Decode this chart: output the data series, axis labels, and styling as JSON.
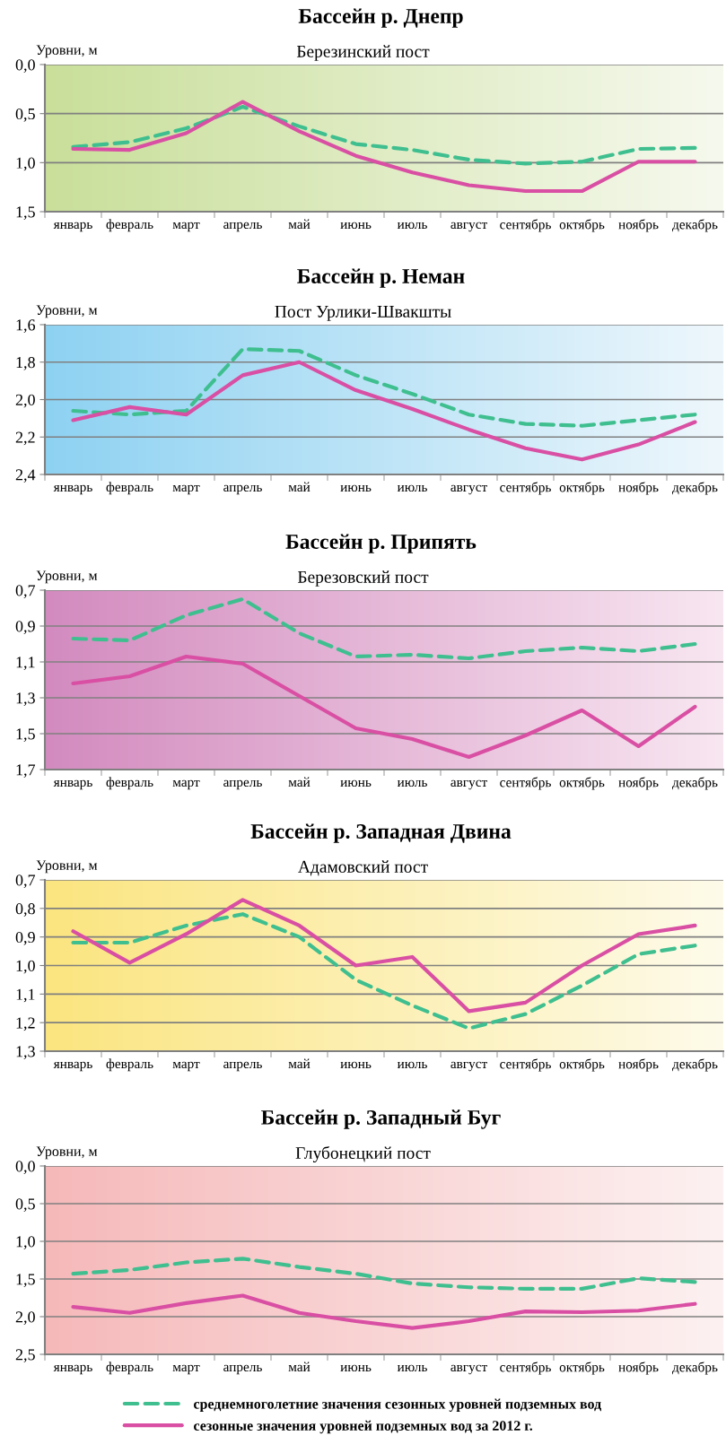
{
  "chart_data": [
    {
      "type": "line",
      "title": "Бассейн р. Днепр",
      "subtitle": "Березинский пост",
      "ylabel": "Уровни, м",
      "categories": [
        "январь",
        "февраль",
        "март",
        "апрель",
        "май",
        "июнь",
        "июль",
        "август",
        "сентябрь",
        "октябрь",
        "ноябрь",
        "декабрь"
      ],
      "series": [
        {
          "color": "#3fbf8f",
          "line_style": "dashed",
          "values": [
            0.84,
            0.79,
            0.65,
            0.43,
            0.63,
            0.81,
            0.87,
            0.97,
            1.01,
            0.99,
            0.86,
            0.85
          ]
        },
        {
          "color": "#d94fa3",
          "line_style": "solid",
          "values": [
            0.86,
            0.87,
            0.7,
            0.38,
            0.68,
            0.93,
            1.1,
            1.23,
            1.29,
            1.29,
            0.99,
            0.99
          ]
        }
      ],
      "ylim": [
        1.5,
        0.0
      ],
      "yticks": [
        {
          "value": 0.0,
          "label": "0,0"
        },
        {
          "value": 0.5,
          "label": "0,5"
        },
        {
          "value": 1.0,
          "label": "1,0"
        },
        {
          "value": 1.5,
          "label": "1,5"
        }
      ],
      "grid": "y",
      "marker": "none"
    },
    {
      "type": "line",
      "title": "Бассейн р. Неман",
      "subtitle": "Пост Урлики-Швакшты",
      "ylabel": "Уровни, м",
      "categories": [
        "январь",
        "февраль",
        "март",
        "апрель",
        "май",
        "июнь",
        "июль",
        "август",
        "сентябрь",
        "октябрь",
        "ноябрь",
        "декабрь"
      ],
      "series": [
        {
          "color": "#3fbf8f",
          "line_style": "dashed",
          "values": [
            2.06,
            2.08,
            2.06,
            1.73,
            1.74,
            1.87,
            1.97,
            2.08,
            2.13,
            2.14,
            2.11,
            2.08
          ]
        },
        {
          "color": "#d94fa3",
          "line_style": "solid",
          "values": [
            2.11,
            2.04,
            2.08,
            1.87,
            1.8,
            1.95,
            2.05,
            2.16,
            2.26,
            2.32,
            2.24,
            2.12
          ]
        }
      ],
      "ylim": [
        2.4,
        1.6
      ],
      "yticks": [
        {
          "value": 1.6,
          "label": "1,6"
        },
        {
          "value": 1.8,
          "label": "1,8"
        },
        {
          "value": 2.0,
          "label": "2,0"
        },
        {
          "value": 2.2,
          "label": "2,2"
        },
        {
          "value": 2.4,
          "label": "2,4"
        }
      ],
      "grid": "y",
      "marker": "none"
    },
    {
      "type": "line",
      "title": "Бассейн р. Припять",
      "subtitle": "Березовский пост",
      "ylabel": "Уровни, м",
      "categories": [
        "январь",
        "февраль",
        "март",
        "апрель",
        "май",
        "июнь",
        "июль",
        "август",
        "сентябрь",
        "октябрь",
        "ноябрь",
        "декабрь"
      ],
      "series": [
        {
          "color": "#3fbf8f",
          "line_style": "dashed",
          "values": [
            0.97,
            0.98,
            0.84,
            0.75,
            0.94,
            1.07,
            1.06,
            1.08,
            1.04,
            1.02,
            1.04,
            1.0
          ]
        },
        {
          "color": "#d94fa3",
          "line_style": "solid",
          "values": [
            1.22,
            1.18,
            1.07,
            1.11,
            1.29,
            1.47,
            1.53,
            1.63,
            1.51,
            1.37,
            1.57,
            1.35
          ]
        }
      ],
      "ylim": [
        1.7,
        0.7
      ],
      "yticks": [
        {
          "value": 0.7,
          "label": "0,7"
        },
        {
          "value": 0.9,
          "label": "0,9"
        },
        {
          "value": 1.1,
          "label": "1,1"
        },
        {
          "value": 1.3,
          "label": "1,3"
        },
        {
          "value": 1.5,
          "label": "1,5"
        },
        {
          "value": 1.7,
          "label": "1,7"
        }
      ],
      "grid": "y",
      "marker": "none"
    },
    {
      "type": "line",
      "title": "Бассейн р. Западная Двина",
      "subtitle": "Адамовский пост",
      "ylabel": "Уровни, м",
      "categories": [
        "январь",
        "февраль",
        "март",
        "апрель",
        "май",
        "июнь",
        "июль",
        "август",
        "сентябрь",
        "октябрь",
        "ноябрь",
        "декабрь"
      ],
      "series": [
        {
          "color": "#3fbf8f",
          "line_style": "dashed",
          "values": [
            0.92,
            0.92,
            0.86,
            0.82,
            0.9,
            1.05,
            1.14,
            1.22,
            1.17,
            1.07,
            0.96,
            0.93
          ]
        },
        {
          "color": "#d94fa3",
          "line_style": "solid",
          "values": [
            0.88,
            0.99,
            0.89,
            0.77,
            0.86,
            1.0,
            0.97,
            1.16,
            1.13,
            1.0,
            0.89,
            0.86
          ]
        }
      ],
      "ylim": [
        1.3,
        0.7
      ],
      "yticks": [
        {
          "value": 0.7,
          "label": "0,7"
        },
        {
          "value": 0.8,
          "label": "0,8"
        },
        {
          "value": 0.9,
          "label": "0,9"
        },
        {
          "value": 1.0,
          "label": "1,0"
        },
        {
          "value": 1.1,
          "label": "1,1"
        },
        {
          "value": 1.2,
          "label": "1,2"
        },
        {
          "value": 1.3,
          "label": "1,3"
        }
      ],
      "grid": "y",
      "marker": "none"
    },
    {
      "type": "line",
      "title": "Бассейн р. Западный Буг",
      "subtitle": "Глубонецкий пост",
      "ylabel": "Уровни, м",
      "categories": [
        "январь",
        "февраль",
        "март",
        "апрель",
        "май",
        "июнь",
        "июль",
        "август",
        "сентябрь",
        "октябрь",
        "ноябрь",
        "декабрь"
      ],
      "series": [
        {
          "name": "среднемноголетние значения сезонных уровней подземных вод",
          "color": "#3fbf8f",
          "line_style": "dashed",
          "values": [
            1.43,
            1.38,
            1.28,
            1.23,
            1.34,
            1.43,
            1.56,
            1.61,
            1.63,
            1.63,
            1.49,
            1.54
          ]
        },
        {
          "name": "сезонные значения уровней подземных вод за 2012 г.",
          "color": "#d94fa3",
          "line_style": "solid",
          "values": [
            1.87,
            1.95,
            1.82,
            1.72,
            1.95,
            2.06,
            2.15,
            2.06,
            1.93,
            1.94,
            1.92,
            1.83
          ]
        }
      ],
      "ylim": [
        2.5,
        0.0
      ],
      "yticks": [
        {
          "value": 0.0,
          "label": "0,0"
        },
        {
          "value": 0.5,
          "label": "0,5"
        },
        {
          "value": 1.0,
          "label": "1,0"
        },
        {
          "value": 1.5,
          "label": "1,5"
        },
        {
          "value": 2.0,
          "label": "2,0"
        },
        {
          "value": 2.5,
          "label": "2,5"
        }
      ],
      "grid": "y",
      "legend": "bottom",
      "marker": "none"
    }
  ]
}
